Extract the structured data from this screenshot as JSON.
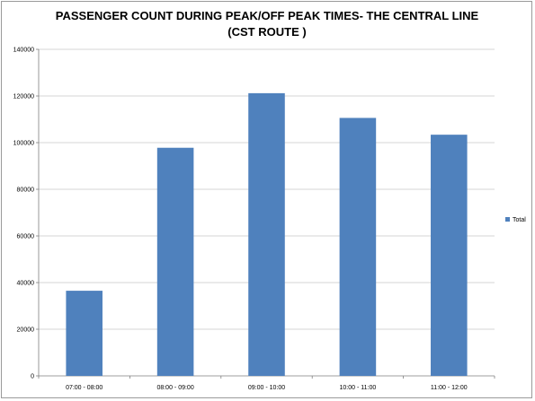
{
  "chart_data": {
    "type": "bar",
    "title_lines": [
      "PASSENGER COUNT DURING PEAK/OFF PEAK TIMES- THE CENTRAL LINE",
      "(CST ROUTE )"
    ],
    "categories": [
      "07:00 - 08:00",
      "08:00 - 09:00",
      "09:00 - 10:00",
      "10:00 - 11:00",
      "11:00 - 12:00"
    ],
    "series": [
      {
        "name": "Total",
        "color": "#4f81bd",
        "values": [
          36500,
          97800,
          121200,
          110600,
          103400
        ]
      }
    ],
    "ylim": [
      0,
      140000
    ],
    "yticks": [
      0,
      20000,
      40000,
      60000,
      80000,
      100000,
      120000,
      140000
    ],
    "grid": true,
    "legend_position": "right",
    "xlabel": "",
    "ylabel": ""
  }
}
